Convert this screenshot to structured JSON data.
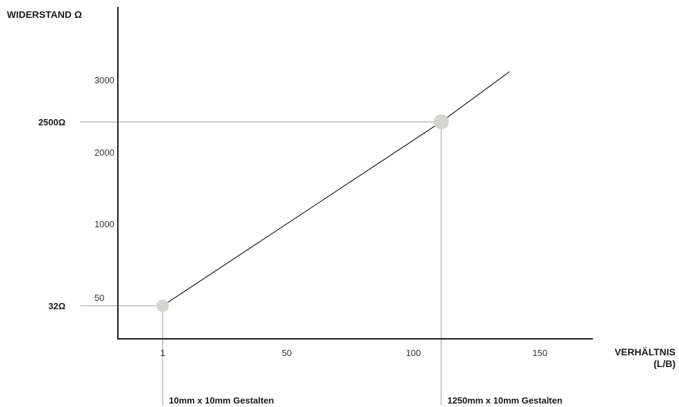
{
  "chart_data": {
    "type": "line",
    "y_axis_title": "WIDERSTAND Ω",
    "x_axis_title_line1": "VERHÄLTNIS",
    "x_axis_title_line2": "(L/B)",
    "x_ticks": [
      "1",
      "50",
      "100",
      "150"
    ],
    "y_ticks": [
      "50",
      "1000",
      "2000",
      "3000"
    ],
    "series": [
      {
        "x": [
          1,
          111,
          138
        ],
        "y": [
          32,
          2500,
          3150
        ]
      }
    ],
    "highlights": [
      {
        "x": 1,
        "y": 32,
        "y_label": "32Ω",
        "x_label": "10mm x 10mm Gestalten"
      },
      {
        "x": 111,
        "y": 2500,
        "y_label": "2500Ω",
        "x_label": "1250mm x 10mm Gestalten"
      }
    ],
    "colors": {
      "axis": "#1a1a1a",
      "line": "#1a1a1a",
      "guide": "#cccccc",
      "marker": "#d4d4d0"
    },
    "grid": false
  }
}
